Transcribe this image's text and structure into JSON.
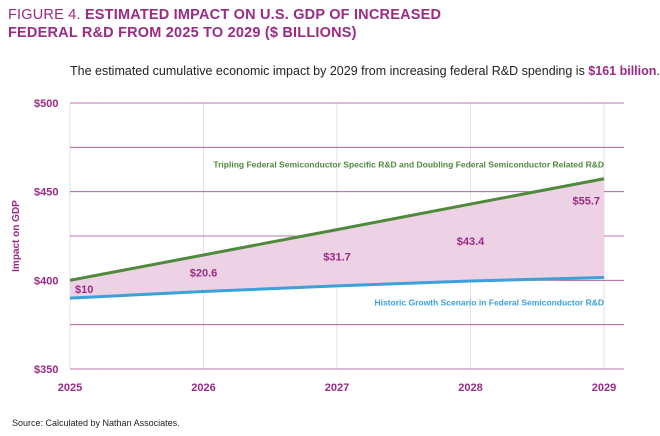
{
  "header": {
    "figure_label": "FIGURE 4.",
    "title_line1": "ESTIMATED IMPACT ON U.S. GDP OF INCREASED",
    "title_line2": "FEDERAL R&D FROM 2025 TO 2029 ($ BILLIONS)"
  },
  "subtitle": {
    "text_before": "The estimated cumulative economic impact by 2029 from increasing federal R&D spending is ",
    "highlight": "$161 billion",
    "text_after": "."
  },
  "source": "Source: Calculated by Nathan Associates.",
  "colors": {
    "accent": "#9b2a84",
    "green": "#4f8a3c",
    "blue": "#3aa1d9",
    "fill": "#ecd2e4"
  },
  "chart_data": {
    "type": "area",
    "ylabel": "Impact on GDP",
    "ylim": [
      350,
      500
    ],
    "yticks": [
      350,
      400,
      450,
      500
    ],
    "ytick_labels": [
      "$350",
      "$400",
      "$450",
      "$500"
    ],
    "x": [
      2025,
      2026,
      2027,
      2028,
      2029
    ],
    "x_labels": [
      "2025",
      "2026",
      "2027",
      "2028",
      "2029"
    ],
    "series": [
      {
        "name": "Tripling Federal Semiconductor Specific R&D and Doubling Federal Semiconductor Related R&D",
        "color": "#4f8a3c",
        "values": [
          400,
          414.3,
          428.6,
          443.0,
          457.3
        ]
      },
      {
        "name": "Historic Growth Scenario in Federal Semiconductor R&D",
        "color": "#3aa1d9",
        "values": [
          390.0,
          393.7,
          396.9,
          399.6,
          401.6
        ]
      }
    ],
    "difference_labels": [
      "$10",
      "$20.6",
      "$31.7",
      "$43.4",
      "$55.7"
    ]
  }
}
